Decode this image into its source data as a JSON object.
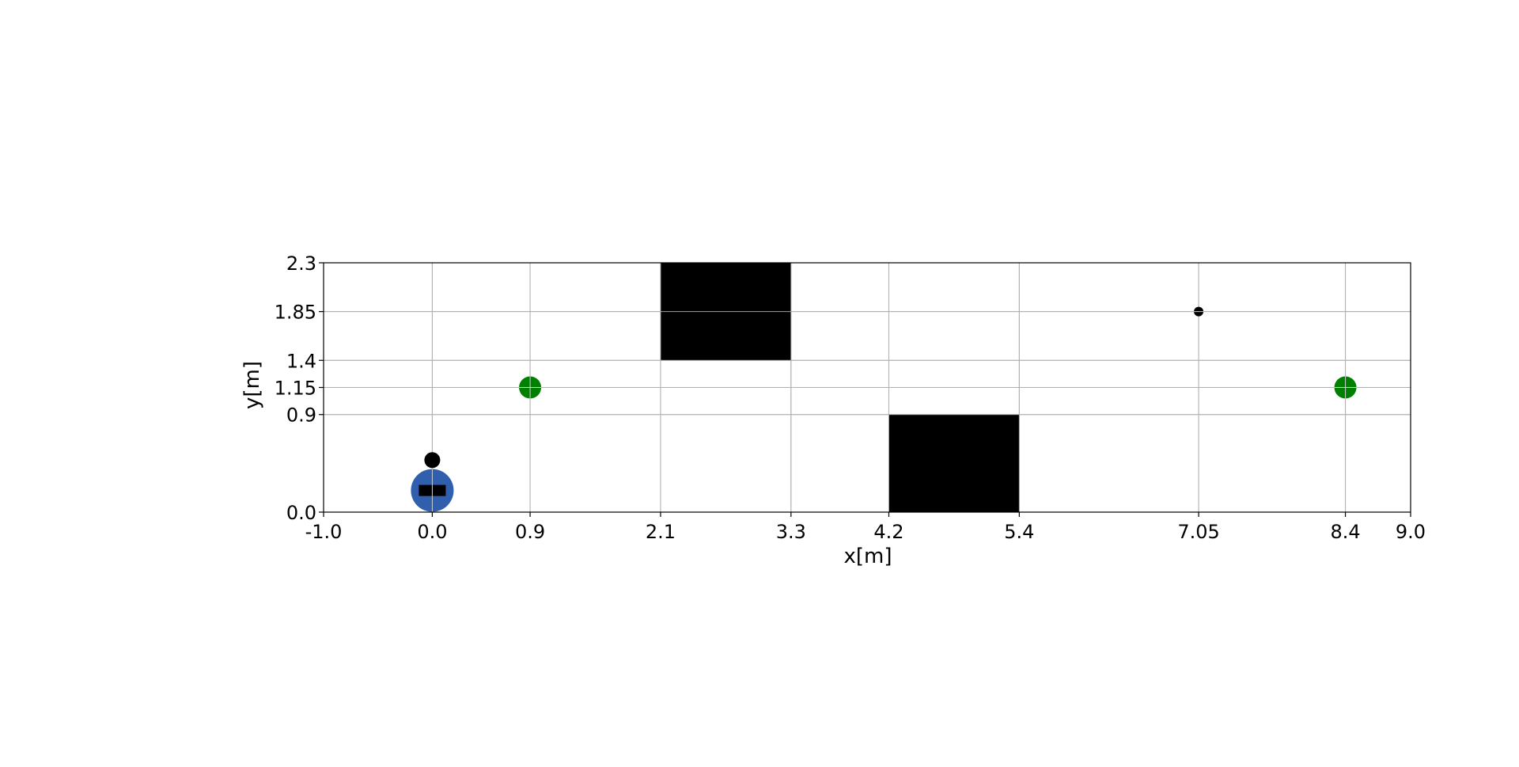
{
  "chart_data": {
    "type": "scatter",
    "xlabel": "x[m]",
    "ylabel": "y[m]",
    "xlim": [
      -1.0,
      9.0
    ],
    "ylim": [
      0.0,
      2.3
    ],
    "xticks": [
      -1.0,
      0.0,
      0.9,
      2.1,
      3.3,
      4.2,
      5.4,
      7.05,
      8.4,
      9.0
    ],
    "xtick_labels": [
      "-1.0",
      "0.0",
      "0.9",
      "2.1",
      "3.3",
      "4.2",
      "5.4",
      "7.05",
      "8.4",
      "9.0"
    ],
    "yticks": [
      0.0,
      0.9,
      1.15,
      1.4,
      1.85,
      2.3
    ],
    "ytick_labels": [
      "0.0",
      "0.9",
      "1.15",
      "1.4",
      "1.85",
      "2.3"
    ],
    "grid": true,
    "obstacles": [
      {
        "x0": 2.1,
        "x1": 3.3,
        "y0": 1.4,
        "y1": 2.3,
        "color": "#000000"
      },
      {
        "x0": 4.2,
        "x1": 5.4,
        "y0": 0.0,
        "y1": 0.9,
        "color": "#000000"
      }
    ],
    "waypoints": [
      {
        "x": 0.9,
        "y": 1.15,
        "color": "#008000"
      },
      {
        "x": 8.4,
        "y": 1.15,
        "color": "#008000"
      }
    ],
    "small_marker": {
      "x": 7.05,
      "y": 1.85,
      "color": "#000000"
    },
    "robot": {
      "x": 0.0,
      "y": 0.2,
      "color": "#2f5fad",
      "radius": 0.2
    },
    "robot_head": {
      "x": 0.0,
      "y": 0.48,
      "color": "#000000"
    }
  }
}
